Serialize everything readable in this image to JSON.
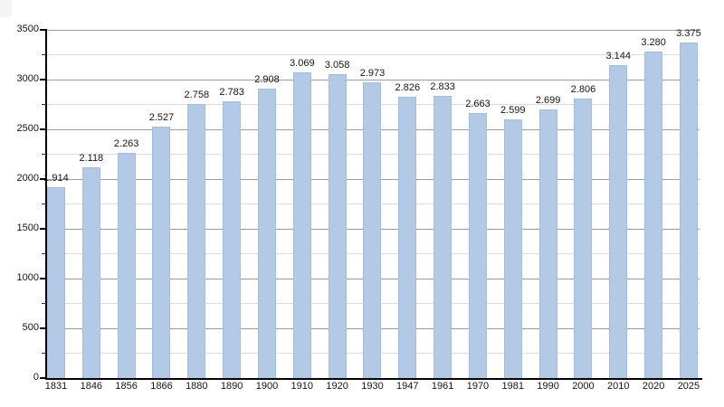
{
  "chart_data": {
    "type": "bar",
    "title": "",
    "xlabel": "",
    "ylabel": "",
    "categories": [
      "1831",
      "1846",
      "1856",
      "1866",
      "1880",
      "1890",
      "1900",
      "1910",
      "1920",
      "1930",
      "1947",
      "1961",
      "1970",
      "1981",
      "1990",
      "2000",
      "2010",
      "2020",
      "2025"
    ],
    "values": [
      1914,
      2118,
      2263,
      2527,
      2758,
      2783,
      2908,
      3069,
      3058,
      2973,
      2826,
      2833,
      2663,
      2599,
      2699,
      2806,
      3144,
      3280,
      3375
    ],
    "value_labels": [
      "1.914",
      "2.118",
      "2.263",
      "2.527",
      "2.758",
      "2.783",
      "2.908",
      "3.069",
      "3.058",
      "2.973",
      "2.826",
      "2.833",
      "2.663",
      "2.599",
      "2.699",
      "2.806",
      "3.144",
      "3.280",
      "3.375"
    ],
    "ylim": [
      0,
      3500
    ],
    "ytick_labels": [
      "0",
      "500",
      "1000",
      "1500",
      "2000",
      "2500",
      "3000",
      "3500"
    ],
    "ytick_major_step": 500,
    "ytick_minor_step": 250,
    "grid": "horizontal",
    "legend": "none"
  },
  "chart_style": {
    "bar_fill": "#b2cae6",
    "bar_border": "#a3bddc",
    "gridline_major": "#9c9c9c",
    "gridline_minor": "#dcdcdc",
    "axis_color": "#000000",
    "tick_minor_color": "#333333",
    "text_color": "#141414",
    "background": "#ffffff",
    "corner_artifact": "#f4f4f4"
  }
}
